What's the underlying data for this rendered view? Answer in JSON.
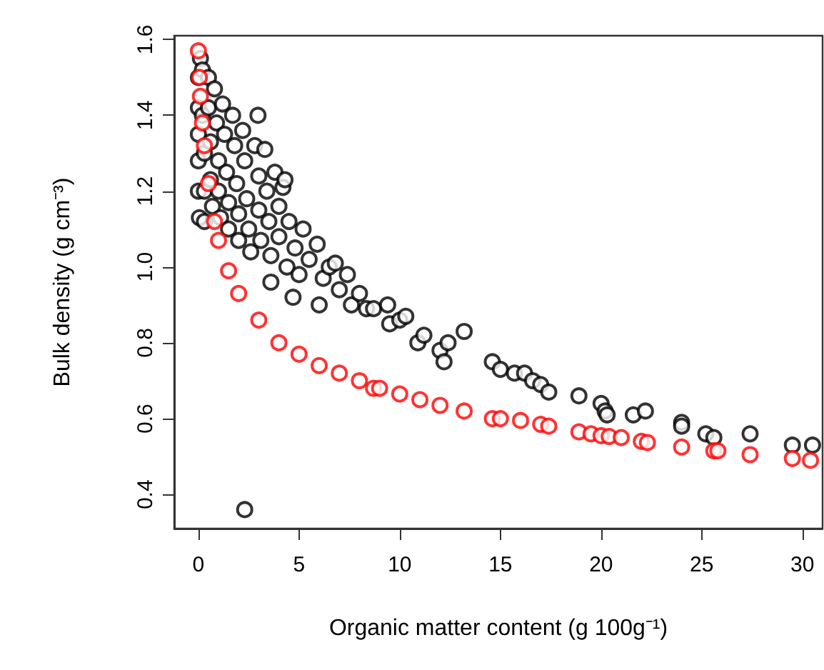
{
  "chart_data": {
    "type": "scatter",
    "xlabel": "Organic matter content (g 100g⁻¹)",
    "ylabel": "Bulk density (g cm⁻³)",
    "xlim": [
      -1.2,
      31.0
    ],
    "ylim": [
      0.31,
      1.61
    ],
    "xticks": [
      0,
      5,
      10,
      15,
      20,
      25,
      30
    ],
    "yticks": [
      0.4,
      0.6,
      0.8,
      {
        "value": 1,
        "label": "1.0"
      },
      1.2,
      1.4,
      1.6
    ],
    "marker": "circle",
    "series": [
      {
        "color": "#000000",
        "x": [
          0,
          0,
          0,
          0,
          0,
          0.05,
          0.1,
          0.2,
          0.2,
          0.3,
          0.3,
          0.3,
          0.5,
          0.5,
          0.6,
          0.6,
          0.7,
          0.8,
          0.9,
          1,
          1,
          1.1,
          1.2,
          1.3,
          1.4,
          1.5,
          1.5,
          1.7,
          1.8,
          1.9,
          2,
          2,
          2.2,
          2.3,
          2.4,
          2.5,
          2.6,
          2.8,
          2.96,
          3,
          3,
          3.1,
          3.3,
          3.4,
          3.5,
          3.6,
          3.6,
          3.8,
          4,
          4,
          4.2,
          4.3,
          4.4,
          4.5,
          4.7,
          4.8,
          5,
          5.2,
          5.5,
          5.9,
          6,
          6.2,
          6.5,
          6.8,
          7,
          7.4,
          7.6,
          8,
          8.35,
          8.7,
          9.4,
          9.5,
          10,
          10.3,
          10.9,
          11.2,
          12,
          12.2,
          12.4,
          13.2,
          2.3,
          14.6,
          15,
          15.7,
          16.2,
          16.6,
          17,
          17.4,
          18.9,
          20,
          20.2,
          20.3,
          21.6,
          22.2,
          24,
          24,
          25.2,
          25.6,
          27.4,
          29.5,
          30.5
        ],
        "values": [
          1.5,
          1.42,
          1.35,
          1.28,
          1.2,
          1.13,
          1.55,
          1.52,
          1.4,
          1.3,
          1.2,
          1.12,
          1.5,
          1.42,
          1.33,
          1.23,
          1.16,
          1.47,
          1.38,
          1.28,
          1.2,
          1.13,
          1.43,
          1.35,
          1.25,
          1.17,
          1.1,
          1.4,
          1.32,
          1.22,
          1.14,
          1.07,
          1.36,
          1.28,
          1.18,
          1.1,
          1.04,
          1.32,
          1.4,
          1.24,
          1.15,
          1.07,
          1.31,
          1.2,
          1.12,
          1.03,
          0.96,
          1.25,
          1.16,
          1.08,
          1.21,
          1.23,
          1.0,
          1.12,
          0.92,
          1.05,
          0.98,
          1.1,
          1.02,
          1.06,
          0.9,
          0.97,
          1.0,
          1.01,
          0.94,
          0.98,
          0.9,
          0.93,
          0.89,
          0.89,
          0.9,
          0.85,
          0.86,
          0.87,
          0.8,
          0.82,
          0.78,
          0.75,
          0.8,
          0.83,
          0.36,
          0.75,
          0.73,
          0.72,
          0.72,
          0.7,
          0.69,
          0.67,
          0.66,
          0.64,
          0.62,
          0.61,
          0.61,
          0.62,
          0.59,
          0.58,
          0.56,
          0.55,
          0.56,
          0.53,
          0.53
        ]
      },
      {
        "color": "#ff0000",
        "x": [
          0,
          0.05,
          0.1,
          0.2,
          0.3,
          0.5,
          0.8,
          1,
          1.5,
          2,
          3,
          4,
          5,
          6,
          7,
          8,
          8.7,
          9,
          10,
          11,
          12,
          13.2,
          14.6,
          15,
          16,
          17,
          17.4,
          18.9,
          19.5,
          20,
          20.4,
          21,
          22,
          22.3,
          24,
          25.6,
          25.8,
          27.4,
          29.5,
          30.4
        ],
        "values": [
          1.57,
          1.5,
          1.45,
          1.38,
          1.32,
          1.22,
          1.12,
          1.07,
          0.99,
          0.93,
          0.86,
          0.8,
          0.77,
          0.74,
          0.72,
          0.7,
          0.68,
          0.68,
          0.665,
          0.65,
          0.635,
          0.62,
          0.6,
          0.6,
          0.595,
          0.585,
          0.58,
          0.565,
          0.56,
          0.555,
          0.553,
          0.55,
          0.54,
          0.537,
          0.525,
          0.515,
          0.515,
          0.505,
          0.495,
          0.49
        ]
      }
    ]
  }
}
